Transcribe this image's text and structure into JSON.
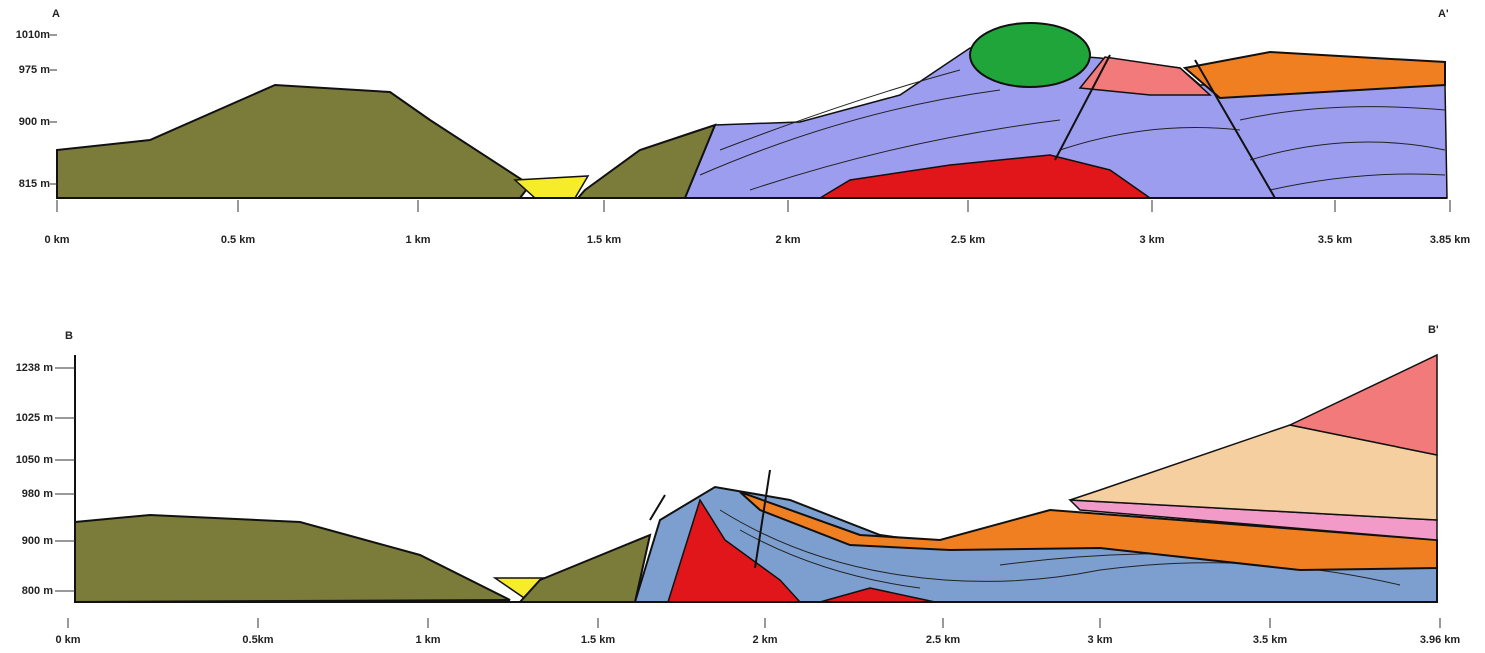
{
  "sections": [
    {
      "start_label": "A",
      "end_label": "A'",
      "elevation_labels": [
        "1010m",
        "975 m",
        "900 m",
        "815 m"
      ],
      "distance_labels": [
        "0 km",
        "0.5 km",
        "1 km",
        "1.5 km",
        "2 km",
        "2.5 km",
        "3 km",
        "3.5 km",
        "3.85 km"
      ]
    },
    {
      "start_label": "B",
      "end_label": "B'",
      "elevation_labels": [
        "1238 m",
        "1025 m",
        "1050 m",
        "980 m",
        "900 m",
        "800 m"
      ],
      "distance_labels": [
        "0 km",
        "0.5km",
        "1 km",
        "1.5 km",
        "2 km",
        "2.5 km",
        "3 km",
        "3.5 km",
        "3.96 km"
      ]
    }
  ]
}
